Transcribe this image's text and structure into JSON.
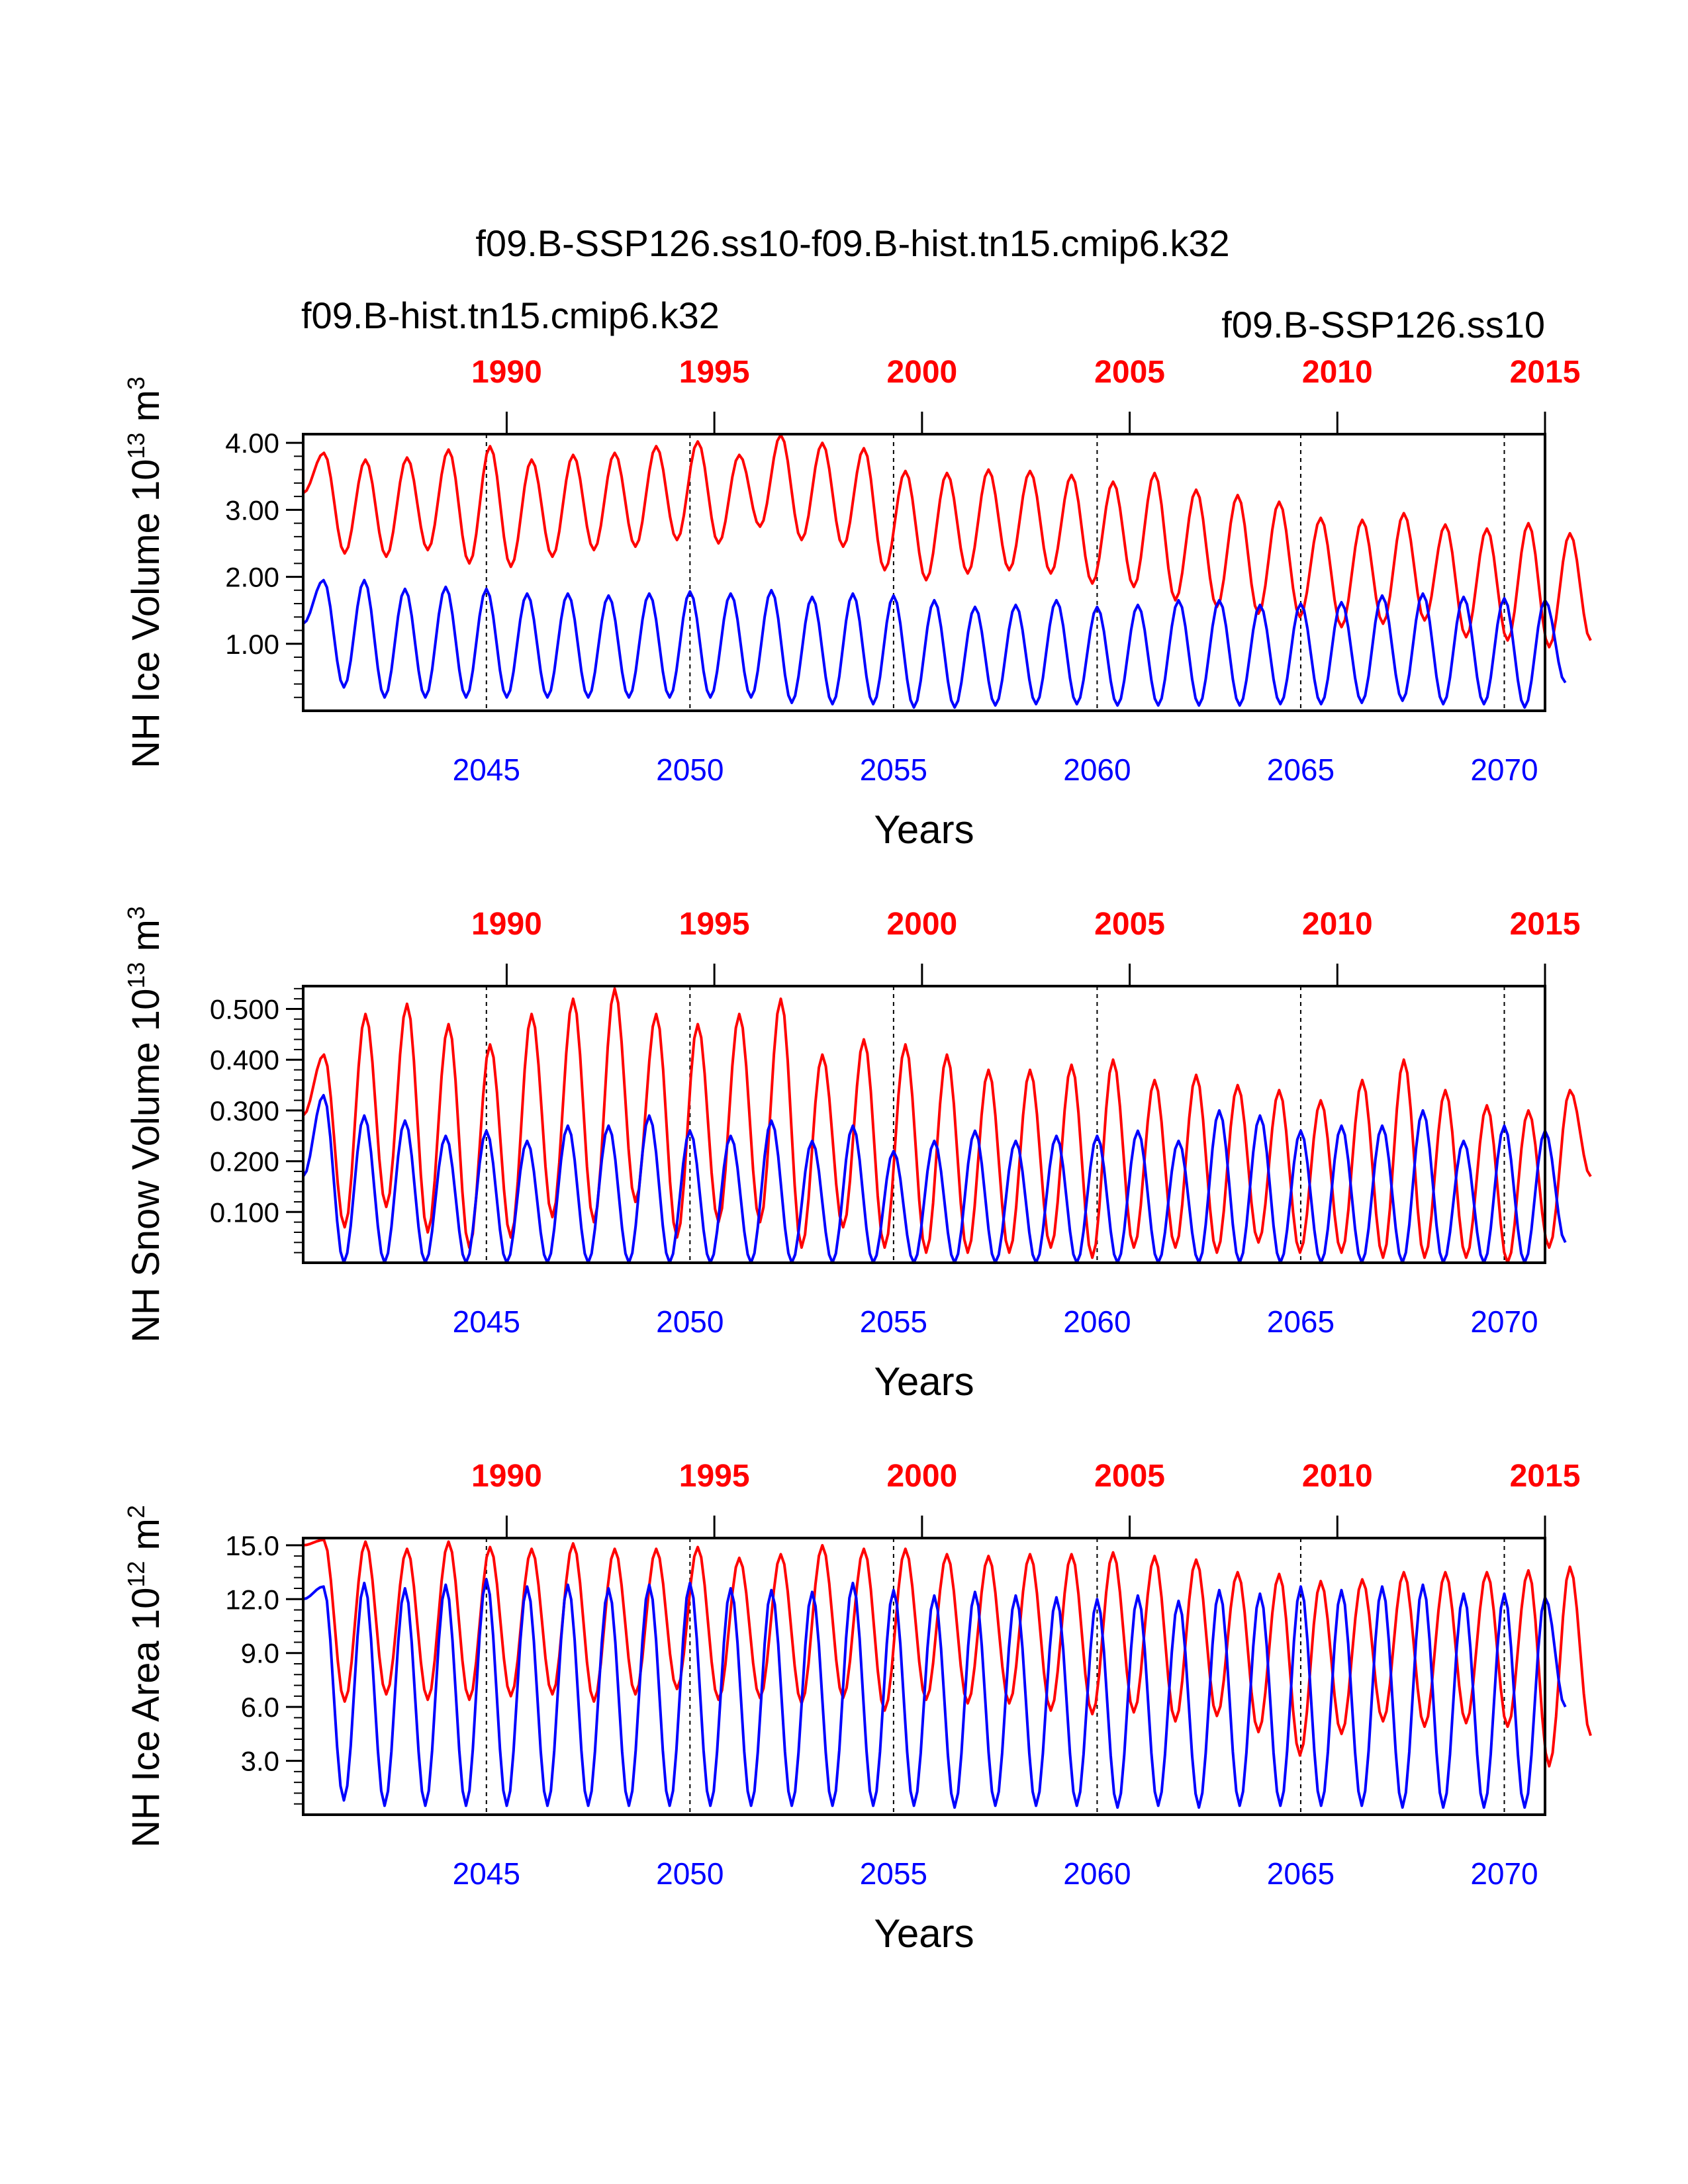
{
  "colors": {
    "hist": "#ff0000",
    "ssp": "#0000ff",
    "frame": "#000000",
    "refline": "#000000"
  },
  "title": "f09.B-SSP126.ss10-f09.B-hist.tn15.cmip6.k32",
  "legend": {
    "left": "f09.B-hist.tn15.cmip6.k32",
    "right": "f09.B-SSP126.ss10"
  },
  "chart_data": [
    {
      "type": "line",
      "ylabel_main": "NH Ice Volume 10",
      "ylabel_exp": "13",
      "ylabel_unit": " m",
      "ylabel_unit_exp": "3",
      "xlabel": "Years",
      "top_axis": {
        "values": [
          1990,
          1995,
          2000,
          2005,
          2010,
          2015
        ],
        "labels": [
          "1990",
          "1995",
          "2000",
          "2005",
          "2010",
          "2015"
        ],
        "range": [
          1985.1,
          2015.0
        ]
      },
      "bottom_axis": {
        "values": [
          2045,
          2050,
          2055,
          2060,
          2065,
          2070
        ],
        "labels": [
          "2045",
          "2050",
          "2055",
          "2060",
          "2065",
          "2070"
        ],
        "range": [
          2040.5,
          2071.0
        ]
      },
      "ylim": [
        0.0,
        4.13
      ],
      "yticks": [
        1.0,
        2.0,
        3.0,
        4.0
      ],
      "yticklabels": [
        "1.00",
        "2.00",
        "3.00",
        "4.00"
      ],
      "yminor_step": 0.2,
      "grid": false,
      "series": [
        {
          "name": "f09.B-hist.tn15.cmip6.k32",
          "color": "#ff0000",
          "axis": "top",
          "start": 1985.1,
          "peaks": [
            3.85,
            3.75,
            3.78,
            3.9,
            3.95,
            3.75,
            3.82,
            3.85,
            3.95,
            4.02,
            3.82,
            4.12,
            4.0,
            3.92,
            3.58,
            3.55,
            3.6,
            3.58,
            3.52,
            3.42,
            3.55,
            3.3,
            3.22,
            3.12,
            2.88,
            2.85,
            2.95,
            2.78,
            2.72,
            2.8,
            2.65
          ],
          "mins": [
            3.25,
            2.35,
            2.3,
            2.4,
            2.2,
            2.15,
            2.3,
            2.4,
            2.45,
            2.55,
            2.5,
            2.75,
            2.55,
            2.45,
            2.1,
            1.95,
            2.05,
            2.1,
            2.05,
            1.9,
            1.85,
            1.65,
            1.55,
            1.45,
            1.4,
            1.25,
            1.3,
            1.35,
            1.1,
            1.05,
            0.95,
            1.05
          ]
        },
        {
          "name": "f09.B-SSP126.ss10",
          "color": "#0000ff",
          "axis": "bottom",
          "start": 2040.5,
          "peaks": [
            1.95,
            1.95,
            1.82,
            1.85,
            1.82,
            1.75,
            1.75,
            1.72,
            1.75,
            1.78,
            1.75,
            1.8,
            1.7,
            1.75,
            1.72,
            1.65,
            1.55,
            1.58,
            1.65,
            1.55,
            1.58,
            1.65,
            1.65,
            1.58,
            1.6,
            1.62,
            1.72,
            1.75,
            1.7,
            1.68,
            1.65
          ],
          "mins": [
            1.3,
            0.35,
            0.2,
            0.2,
            0.2,
            0.2,
            0.2,
            0.2,
            0.2,
            0.2,
            0.2,
            0.2,
            0.12,
            0.1,
            0.1,
            0.05,
            0.05,
            0.08,
            0.1,
            0.1,
            0.08,
            0.08,
            0.08,
            0.08,
            0.1,
            0.1,
            0.12,
            0.15,
            0.1,
            0.1,
            0.05,
            0.42
          ]
        }
      ]
    },
    {
      "type": "line",
      "ylabel_main": "NH Snow Volume 10",
      "ylabel_exp": "13",
      "ylabel_unit": " m",
      "ylabel_unit_exp": "3",
      "xlabel": "Years",
      "top_axis": {
        "values": [
          1990,
          1995,
          2000,
          2005,
          2010,
          2015
        ],
        "labels": [
          "1990",
          "1995",
          "2000",
          "2005",
          "2010",
          "2015"
        ],
        "range": [
          1985.1,
          2015.0
        ]
      },
      "bottom_axis": {
        "values": [
          2045,
          2050,
          2055,
          2060,
          2065,
          2070
        ],
        "labels": [
          "2045",
          "2050",
          "2055",
          "2060",
          "2065",
          "2070"
        ],
        "range": [
          2040.5,
          2071.0
        ]
      },
      "ylim": [
        0.0,
        0.545
      ],
      "yticks": [
        0.1,
        0.2,
        0.3,
        0.4,
        0.5
      ],
      "yticklabels": [
        "0.100",
        "0.200",
        "0.300",
        "0.400",
        "0.500"
      ],
      "yminor_step": 0.02,
      "grid": false,
      "series": [
        {
          "name": "f09.B-hist.tn15.cmip6.k32",
          "color": "#ff0000",
          "axis": "top",
          "start": 1985.1,
          "peaks": [
            0.41,
            0.49,
            0.51,
            0.47,
            0.43,
            0.49,
            0.52,
            0.54,
            0.49,
            0.47,
            0.49,
            0.52,
            0.41,
            0.44,
            0.43,
            0.41,
            0.38,
            0.38,
            0.39,
            0.4,
            0.36,
            0.37,
            0.35,
            0.34,
            0.32,
            0.36,
            0.4,
            0.34,
            0.31,
            0.3,
            0.34
          ],
          "mins": [
            0.29,
            0.07,
            0.11,
            0.06,
            0.03,
            0.05,
            0.09,
            0.08,
            0.12,
            0.05,
            0.08,
            0.08,
            0.03,
            0.07,
            0.03,
            0.02,
            0.02,
            0.02,
            0.03,
            0.01,
            0.03,
            0.03,
            0.02,
            0.04,
            0.02,
            0.02,
            0.01,
            0.01,
            0.01,
            0.0,
            0.03,
            0.17
          ]
        },
        {
          "name": "f09.B-SSP126.ss10",
          "color": "#0000ff",
          "axis": "bottom",
          "start": 2040.5,
          "peaks": [
            0.33,
            0.29,
            0.28,
            0.25,
            0.26,
            0.24,
            0.27,
            0.27,
            0.29,
            0.26,
            0.25,
            0.28,
            0.24,
            0.27,
            0.22,
            0.24,
            0.26,
            0.24,
            0.25,
            0.25,
            0.26,
            0.24,
            0.3,
            0.29,
            0.26,
            0.27,
            0.27,
            0.3,
            0.24,
            0.27,
            0.26
          ],
          "mins": [
            0.17,
            0.0,
            0.0,
            0.0,
            0.0,
            0.0,
            0.0,
            0.0,
            0.0,
            0.0,
            0.0,
            0.0,
            0.0,
            0.0,
            0.0,
            0.0,
            0.0,
            0.0,
            0.0,
            0.0,
            0.0,
            0.0,
            0.0,
            0.0,
            0.0,
            0.0,
            0.0,
            0.0,
            0.0,
            0.0,
            0.0,
            0.04
          ]
        }
      ]
    },
    {
      "type": "line",
      "ylabel_main": "NH Ice Area 10",
      "ylabel_exp": "12",
      "ylabel_unit": " m",
      "ylabel_unit_exp": "2",
      "xlabel": "Years",
      "top_axis": {
        "values": [
          1990,
          1995,
          2000,
          2005,
          2010,
          2015
        ],
        "labels": [
          "1990",
          "1995",
          "2000",
          "2005",
          "2010",
          "2015"
        ],
        "range": [
          1985.1,
          2015.0
        ]
      },
      "bottom_axis": {
        "values": [
          2045,
          2050,
          2055,
          2060,
          2065,
          2070
        ],
        "labels": [
          "2045",
          "2050",
          "2055",
          "2060",
          "2065",
          "2070"
        ],
        "range": [
          2040.5,
          2071.0
        ]
      },
      "ylim": [
        0.0,
        15.4
      ],
      "yticks": [
        3.0,
        6.0,
        9.0,
        12.0,
        15.0
      ],
      "yticklabels": [
        "3.0",
        "6.0",
        "9.0",
        "12.0",
        "15.0"
      ],
      "yminor_step": 0.6,
      "grid": false,
      "series": [
        {
          "name": "f09.B-hist.tn15.cmip6.k32",
          "color": "#ff0000",
          "axis": "top",
          "start": 1985.1,
          "peaks": [
            15.3,
            15.2,
            14.8,
            15.2,
            14.9,
            14.8,
            15.1,
            14.8,
            14.8,
            14.9,
            14.3,
            14.5,
            15.0,
            14.8,
            14.8,
            14.5,
            14.4,
            14.5,
            14.5,
            14.6,
            14.4,
            14.2,
            13.5,
            13.4,
            13.0,
            13.1,
            13.5,
            13.5,
            13.5,
            13.6,
            13.8
          ],
          "mins": [
            15.0,
            6.3,
            6.7,
            6.4,
            6.4,
            6.6,
            6.7,
            6.3,
            6.7,
            7.0,
            6.4,
            6.5,
            6.2,
            6.5,
            5.8,
            6.4,
            6.2,
            6.2,
            5.8,
            5.6,
            5.7,
            5.2,
            5.5,
            4.6,
            3.3,
            4.5,
            5.2,
            4.9,
            5.1,
            4.9,
            2.7,
            4.4
          ]
        },
        {
          "name": "f09.B-SSP126.ss10",
          "color": "#0000ff",
          "axis": "bottom",
          "start": 2040.5,
          "peaks": [
            12.7,
            12.9,
            12.6,
            12.8,
            13.1,
            12.7,
            12.8,
            12.6,
            12.8,
            12.9,
            12.6,
            12.5,
            12.4,
            12.9,
            12.5,
            12.2,
            12.4,
            12.2,
            12.1,
            12.0,
            12.2,
            11.9,
            12.5,
            12.3,
            12.7,
            12.5,
            12.7,
            12.8,
            12.3,
            12.3,
            12.1
          ],
          "mins": [
            12.0,
            0.8,
            0.5,
            0.5,
            0.5,
            0.5,
            0.5,
            0.5,
            0.5,
            0.5,
            0.5,
            0.5,
            0.5,
            0.5,
            0.5,
            0.5,
            0.4,
            0.5,
            0.5,
            0.5,
            0.4,
            0.5,
            0.4,
            0.5,
            0.5,
            0.5,
            0.5,
            0.4,
            0.4,
            0.4,
            0.4,
            6.0
          ]
        }
      ]
    }
  ]
}
